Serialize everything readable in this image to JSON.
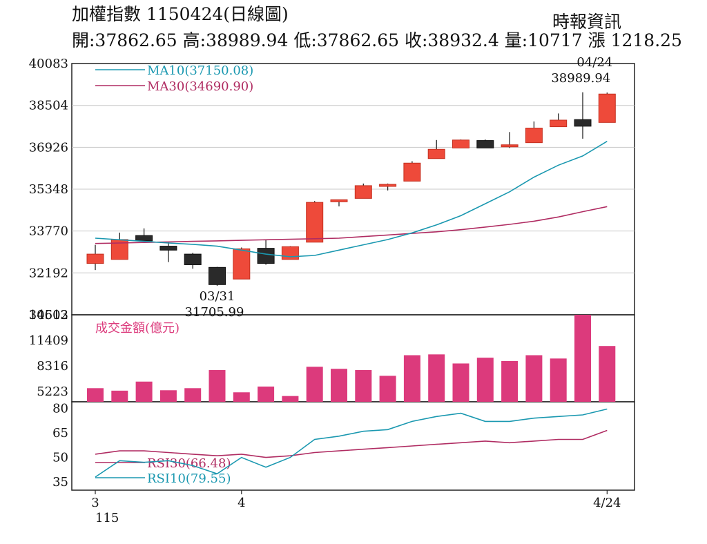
{
  "header": {
    "title": "加權指數 1150424(日線圖)",
    "quote": "開:37862.65 高:38989.94 低:37862.65 收:38932.4 量:10717 漲 1218.25",
    "source": "時報資訊"
  },
  "colors": {
    "up": "#ee4a3a",
    "down": "#2a2a2a",
    "ma10": "#1a98b0",
    "ma30": "#b02c62",
    "volume": "#dc3a7c",
    "rsi10": "#1a98b0",
    "rsi30": "#b02c62"
  },
  "chart_data": [
    {
      "type": "candlestick",
      "title": "",
      "ylim": [
        30613,
        40083
      ],
      "yticks": [
        40083,
        38504,
        36926,
        35348,
        33770,
        32192,
        30613
      ],
      "xticks": [
        {
          "label": "3",
          "index": 0
        },
        {
          "label": "4",
          "index": 6
        },
        {
          "label": "4/24",
          "index": 21
        }
      ],
      "year_label": "115",
      "candles": [
        {
          "o": 32550,
          "h": 33250,
          "l": 32300,
          "c": 32900
        },
        {
          "o": 32700,
          "h": 33710,
          "l": 32700,
          "c": 33450
        },
        {
          "o": 33600,
          "h": 33870,
          "l": 33400,
          "c": 33400
        },
        {
          "o": 33200,
          "h": 33350,
          "l": 32600,
          "c": 33050
        },
        {
          "o": 32900,
          "h": 32950,
          "l": 32350,
          "c": 32500
        },
        {
          "o": 32400,
          "h": 32420,
          "l": 31706,
          "c": 31750
        },
        {
          "o": 31960,
          "h": 33150,
          "l": 31960,
          "c": 33100
        },
        {
          "o": 33120,
          "h": 33450,
          "l": 32500,
          "c": 32550
        },
        {
          "o": 32700,
          "h": 33200,
          "l": 32700,
          "c": 33180
        },
        {
          "o": 33350,
          "h": 34900,
          "l": 33350,
          "c": 34850
        },
        {
          "o": 34880,
          "h": 34950,
          "l": 34700,
          "c": 34950
        },
        {
          "o": 35000,
          "h": 35560,
          "l": 35000,
          "c": 35480
        },
        {
          "o": 35480,
          "h": 35560,
          "l": 35300,
          "c": 35530
        },
        {
          "o": 35650,
          "h": 36400,
          "l": 35650,
          "c": 36330
        },
        {
          "o": 36500,
          "h": 37200,
          "l": 36500,
          "c": 36850
        },
        {
          "o": 36900,
          "h": 37220,
          "l": 36900,
          "c": 37200
        },
        {
          "o": 37180,
          "h": 37220,
          "l": 36900,
          "c": 36900
        },
        {
          "o": 36950,
          "h": 37500,
          "l": 36900,
          "c": 37020
        },
        {
          "o": 37100,
          "h": 37900,
          "l": 37100,
          "c": 37650
        },
        {
          "o": 37700,
          "h": 38200,
          "l": 37700,
          "c": 37950
        },
        {
          "o": 37970,
          "h": 39000,
          "l": 37250,
          "c": 37720
        },
        {
          "o": 37862.65,
          "h": 38989.94,
          "l": 37862.65,
          "c": 38932.4
        }
      ],
      "ma10": {
        "name": "MA10(37150.08)",
        "values": [
          33500,
          33440,
          33380,
          33320,
          33270,
          33200,
          33050,
          32900,
          32800,
          32850,
          33050,
          33250,
          33450,
          33700,
          34000,
          34350,
          34800,
          35250,
          35800,
          36250,
          36600,
          37150.08
        ]
      },
      "ma30": {
        "name": "MA30(34690.90)",
        "values": [
          33300,
          33320,
          33340,
          33360,
          33380,
          33400,
          33420,
          33440,
          33460,
          33480,
          33500,
          33560,
          33620,
          33680,
          33740,
          33820,
          33920,
          34020,
          34140,
          34300,
          34500,
          34690.9
        ]
      },
      "annotations": [
        {
          "index": 5,
          "date": "03/31",
          "value": "31705.99",
          "position": "below"
        },
        {
          "index": 21,
          "date": "04/24",
          "value": "38989.94",
          "position": "above"
        }
      ]
    },
    {
      "type": "bar",
      "title": "成交金額(億元)",
      "ylim": [
        3950,
        14502
      ],
      "yticks": [
        14502,
        11409,
        8316,
        5223
      ],
      "values": [
        5600,
        5300,
        6400,
        5350,
        5600,
        7800,
        5100,
        5800,
        4650,
        8200,
        7950,
        7800,
        7100,
        9600,
        9700,
        8600,
        9300,
        8900,
        9600,
        9200,
        14502,
        10717
      ]
    },
    {
      "type": "line",
      "title": "",
      "ylim": [
        30,
        84
      ],
      "yticks": [
        80,
        65,
        50,
        35
      ],
      "series": [
        {
          "name": "RSI30(66.48)",
          "key": "rsi30",
          "values": [
            52,
            54,
            54,
            53,
            52,
            51,
            52,
            50,
            51,
            53,
            54,
            55,
            56,
            57,
            58,
            59,
            60,
            59,
            60,
            61,
            61,
            66.48
          ]
        },
        {
          "name": "RSI10(79.55)",
          "key": "rsi10",
          "values": [
            38,
            48,
            47,
            48,
            45,
            40,
            50,
            44,
            50,
            61,
            63,
            66,
            67,
            72,
            75,
            77,
            72,
            72,
            74,
            75,
            76,
            79.55
          ]
        }
      ]
    }
  ]
}
